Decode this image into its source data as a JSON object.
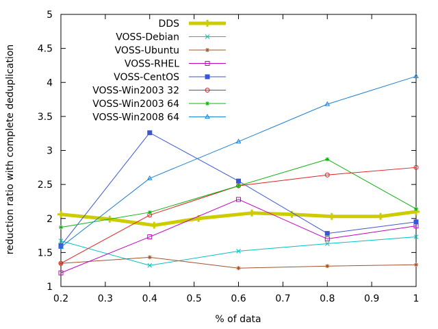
{
  "chart_data": {
    "type": "line",
    "xlabel": "% of data",
    "ylabel": "reduction ratio with complete deduplication",
    "xlim": [
      0.2,
      1.0
    ],
    "ylim": [
      1.0,
      5.0
    ],
    "xticks": [
      "0.2",
      "0.3",
      "0.4",
      "0.5",
      "0.6",
      "0.7",
      "0.8",
      "0.9",
      "1"
    ],
    "yticks": [
      "1",
      "1.5",
      "2",
      "2.5",
      "3",
      "3.5",
      "4",
      "4.5",
      "5"
    ],
    "xtick_values": [
      0.2,
      0.3,
      0.4,
      0.5,
      0.6,
      0.7,
      0.8,
      0.9,
      1.0
    ],
    "ytick_values": [
      1.0,
      1.5,
      2.0,
      2.5,
      3.0,
      3.5,
      4.0,
      4.5,
      5.0
    ],
    "legend_position": "top-right",
    "grid": false,
    "series": [
      {
        "name": "DDS",
        "color": "#cccc00",
        "marker": "plus",
        "thick": true,
        "points": [
          [
            0.2,
            2.06
          ],
          [
            0.31,
            1.99
          ],
          [
            0.41,
            1.9
          ],
          [
            0.51,
            2.0
          ],
          [
            0.63,
            2.08
          ],
          [
            0.72,
            2.06
          ],
          [
            0.81,
            2.03
          ],
          [
            0.92,
            2.03
          ],
          [
            1.0,
            2.1
          ]
        ]
      },
      {
        "name": "VOSS-Debian",
        "color": "#00c0c0",
        "marker": "x",
        "points": [
          [
            0.2,
            1.67
          ],
          [
            0.4,
            1.31
          ],
          [
            0.6,
            1.52
          ],
          [
            0.8,
            1.63
          ],
          [
            1.0,
            1.73
          ]
        ]
      },
      {
        "name": "VOSS-Ubuntu",
        "color": "#a0522d",
        "marker": "star",
        "points": [
          [
            0.2,
            1.34
          ],
          [
            0.4,
            1.43
          ],
          [
            0.6,
            1.27
          ],
          [
            0.8,
            1.3
          ],
          [
            1.0,
            1.32
          ]
        ]
      },
      {
        "name": "VOSS-RHEL",
        "color": "#c000c0",
        "marker": "square-open",
        "points": [
          [
            0.2,
            1.2
          ],
          [
            0.4,
            1.73
          ],
          [
            0.6,
            2.28
          ],
          [
            0.8,
            1.7
          ],
          [
            1.0,
            1.89
          ]
        ]
      },
      {
        "name": "VOSS-CentOS",
        "color": "#3a56d4",
        "marker": "square-filled",
        "points": [
          [
            0.2,
            1.6
          ],
          [
            0.4,
            3.26
          ],
          [
            0.6,
            2.55
          ],
          [
            0.8,
            1.78
          ],
          [
            1.0,
            1.95
          ]
        ]
      },
      {
        "name": "VOSS-Win2003 32",
        "color": "#e02020",
        "marker": "circle-open",
        "points": [
          [
            0.2,
            1.34
          ],
          [
            0.4,
            2.05
          ],
          [
            0.6,
            2.48
          ],
          [
            0.8,
            2.64
          ],
          [
            1.0,
            2.75
          ]
        ]
      },
      {
        "name": "VOSS-Win2003 64",
        "color": "#10b010",
        "marker": "star",
        "points": [
          [
            0.2,
            1.87
          ],
          [
            0.4,
            2.09
          ],
          [
            0.6,
            2.48
          ],
          [
            0.8,
            2.87
          ],
          [
            1.0,
            2.14
          ]
        ]
      },
      {
        "name": "VOSS-Win2008 64",
        "color": "#1a7fd4",
        "marker": "triangle-open",
        "points": [
          [
            0.2,
            1.58
          ],
          [
            0.4,
            2.59
          ],
          [
            0.6,
            3.13
          ],
          [
            0.8,
            3.68
          ],
          [
            1.0,
            4.09
          ]
        ]
      }
    ]
  }
}
